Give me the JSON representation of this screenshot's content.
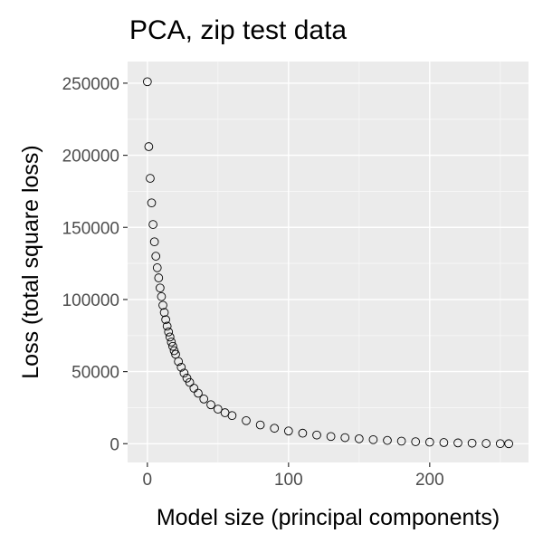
{
  "chart_data": {
    "type": "scatter",
    "title": "PCA, zip test data",
    "xlabel": "Model size (principal components)",
    "ylabel": "Loss (total square loss)",
    "xlim": [
      -14,
      270
    ],
    "ylim": [
      -13000,
      265000
    ],
    "x_ticks": [
      0,
      100,
      200
    ],
    "x_tick_labels": [
      "0",
      "100",
      "200"
    ],
    "y_ticks": [
      0,
      50000,
      100000,
      150000,
      200000,
      250000
    ],
    "y_tick_labels": [
      "0",
      "50000",
      "100000",
      "150000",
      "200000",
      "250000"
    ],
    "grid": true,
    "legend": "none",
    "panel_background": "#ebebeb",
    "marker": "open circle",
    "series": [
      {
        "x": [
          0,
          1,
          2,
          3,
          4,
          5,
          6,
          7,
          8,
          9,
          10,
          11,
          12,
          13,
          14,
          15,
          16,
          17,
          18,
          19,
          20,
          22,
          24,
          26,
          28,
          30,
          33,
          36,
          40,
          45,
          50,
          55,
          60,
          70,
          80,
          90,
          100,
          110,
          120,
          130,
          140,
          150,
          160,
          170,
          180,
          190,
          200,
          210,
          220,
          230,
          240,
          250,
          256
        ],
        "y": [
          251000,
          206000,
          184000,
          167000,
          152000,
          140000,
          130000,
          122000,
          115000,
          108000,
          102000,
          96000,
          91000,
          86000,
          81500,
          77500,
          74000,
          70500,
          67500,
          64500,
          62000,
          57000,
          53000,
          49000,
          45500,
          42500,
          38500,
          35000,
          31000,
          27000,
          24000,
          21500,
          19500,
          16000,
          13000,
          10700,
          8800,
          7300,
          6000,
          5000,
          4200,
          3400,
          2800,
          2300,
          1800,
          1400,
          1100,
          800,
          560,
          350,
          180,
          50,
          0
        ]
      }
    ]
  }
}
